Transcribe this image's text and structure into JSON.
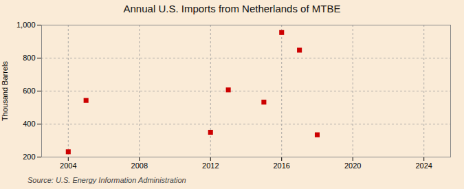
{
  "chart_data": {
    "type": "scatter",
    "title": "Annual U.S. Imports from Netherlands of MTBE",
    "ylabel": "Thousand Barrels",
    "caption": "Source: U.S. Energy Information Administration",
    "x": [
      2004,
      2005,
      2012,
      2013,
      2015,
      2016,
      2017,
      2018
    ],
    "values": [
      232,
      543,
      350,
      607,
      533,
      955,
      848,
      335
    ],
    "color": "#cc0000",
    "marker": "square",
    "xlim": [
      2002.5,
      2025.5
    ],
    "xticks": [
      2004,
      2008,
      2012,
      2016,
      2020,
      2024
    ],
    "ylim": [
      200,
      1000
    ],
    "yticks": [
      200,
      400,
      600,
      800,
      {
        "value": 1000,
        "label": "1,000"
      }
    ],
    "grid": true
  }
}
